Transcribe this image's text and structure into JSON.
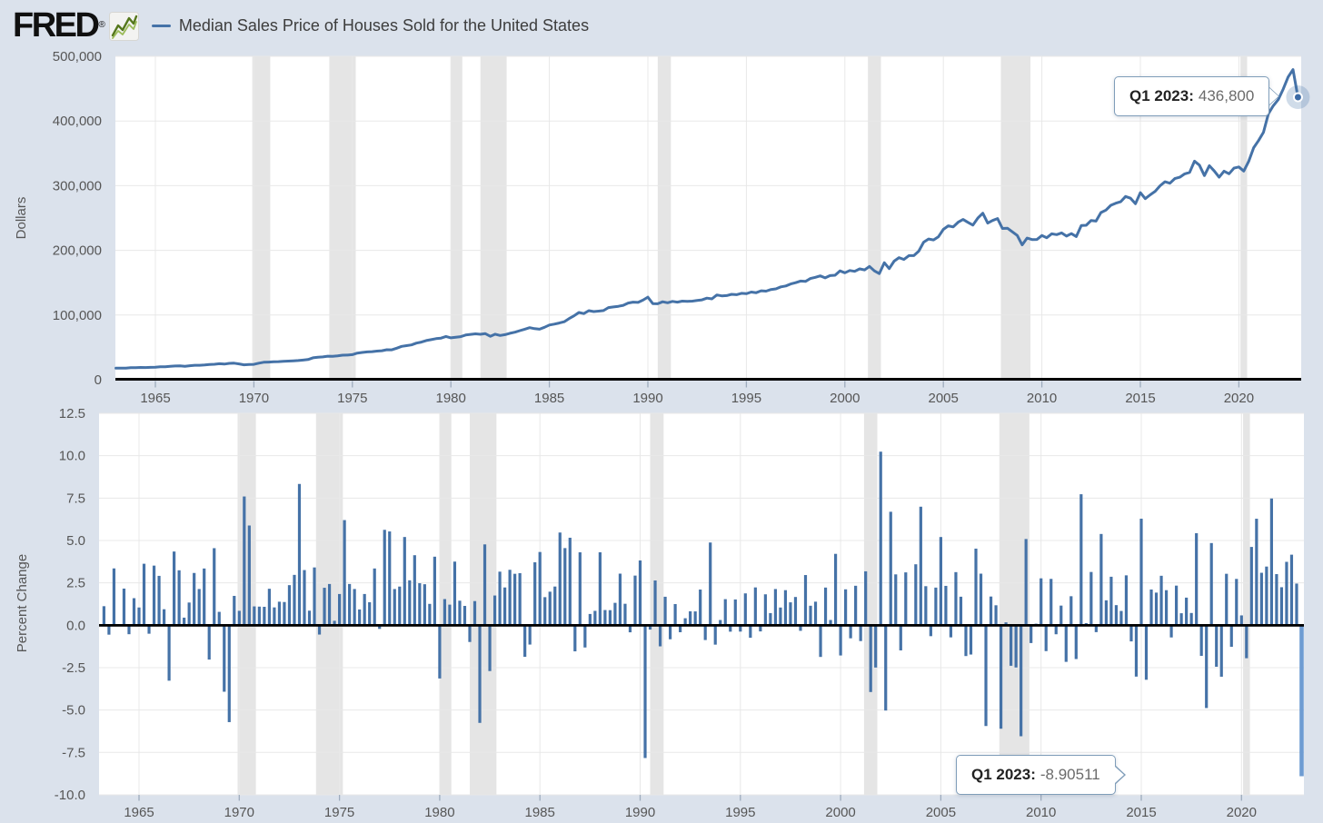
{
  "page": {
    "background": "#dbe2ec"
  },
  "header": {
    "logo_text": "FRED",
    "logo_registered": "®",
    "legend_label": "Median Sales Price of Houses Sold for the United States"
  },
  "tooltips": {
    "price": {
      "label": "Q1 2023:",
      "value": "436,800"
    },
    "pct": {
      "label": "Q1 2023:",
      "value": "-8.90511"
    }
  },
  "colors": {
    "series_blue": "#4572a7",
    "hover_bar_blue": "#6e9cd2",
    "marker_halo": "rgba(69,114,167,0.25)",
    "recession_band": "#e5e5e5",
    "gridline": "#e8e8e8",
    "plot_background": "#ffffff",
    "page_background": "#dbe2ec",
    "axis_line": "#000000",
    "tick_text": "#565656",
    "tick_mark": "#9dabbd",
    "logo_spark_dark_green": "#55771c",
    "logo_spark_light_green": "#9bbb59"
  },
  "chart_data": [
    {
      "type": "line",
      "title": "Median Sales Price of Houses Sold for the United States",
      "ylabel": "Dollars",
      "xlabel": "",
      "frequency": "quarterly",
      "x_start": 1963.0,
      "x_step": 0.25,
      "ylim": [
        0,
        500000
      ],
      "y_ticks": [
        0,
        100000,
        200000,
        300000,
        400000,
        500000
      ],
      "y_tick_labels": [
        "0",
        "100,000",
        "200,000",
        "300,000",
        "400,000",
        "500,000"
      ],
      "x_ticks": [
        1965,
        1970,
        1975,
        1980,
        1985,
        1990,
        1995,
        2000,
        2005,
        2010,
        2015,
        2020
      ],
      "x_tick_labels": [
        "1965",
        "1970",
        "1975",
        "1980",
        "1985",
        "1990",
        "1995",
        "2000",
        "2005",
        "2010",
        "2015",
        "2020"
      ],
      "grid": true,
      "legend_position": "top-left-header",
      "recession_bands": [
        [
          1969.92,
          1970.83
        ],
        [
          1973.83,
          1975.17
        ],
        [
          1980.0,
          1980.58
        ],
        [
          1981.5,
          1982.83
        ],
        [
          1990.5,
          1991.17
        ],
        [
          2001.17,
          2001.83
        ],
        [
          2007.92,
          2009.42
        ],
        [
          2020.08,
          2020.42
        ]
      ],
      "last_point": {
        "period": "Q1 2023",
        "value": 436800
      },
      "values": [
        17800,
        18000,
        17900,
        18500,
        18500,
        18900,
        18800,
        19100,
        19300,
        20000,
        19900,
        20600,
        21200,
        21400,
        20700,
        21600,
        22300,
        22400,
        22700,
        23400,
        23900,
        24700,
        24200,
        25300,
        25500,
        24500,
        23100,
        23500,
        23700,
        25500,
        27000,
        27300,
        27600,
        27900,
        28500,
        28800,
        29200,
        29600,
        30300,
        31200,
        33800,
        34900,
        35200,
        36400,
        36200,
        37000,
        37900,
        38000,
        38700,
        41100,
        42100,
        43000,
        43400,
        44200,
        44800,
        46300,
        46200,
        48800,
        51500,
        52600,
        53800,
        56600,
        58100,
        60500,
        62000,
        63500,
        64300,
        66900,
        64800,
        65800,
        66600,
        69100,
        70100,
        70900,
        70200,
        71200,
        67100,
        70300,
        68400,
        69600,
        71800,
        73400,
        75800,
        78100,
        80500,
        79000,
        78100,
        81000,
        84500,
        85900,
        87600,
        89600,
        94500,
        98800,
        103900,
        102300,
        106700,
        105300,
        106000,
        106900,
        111500,
        112500,
        113500,
        115000,
        118500,
        120000,
        119500,
        123000,
        127700,
        117700,
        117400,
        120500,
        119000,
        121000,
        120000,
        121500,
        121000,
        121500,
        122500,
        123500,
        126100,
        125000,
        131100,
        129600,
        130000,
        132000,
        131500,
        133500,
        133000,
        135500,
        134500,
        137500,
        137000,
        139500,
        140500,
        143500,
        145000,
        148000,
        150000,
        152500,
        152000,
        156500,
        158300,
        160500,
        157500,
        161000,
        161500,
        168300,
        165300,
        168800,
        167500,
        171400,
        169800,
        175200,
        168300,
        164100,
        180900,
        171800,
        183300,
        188800,
        186000,
        191800,
        191900,
        198800,
        212700,
        217600,
        216200,
        221000,
        232500,
        237900,
        236200,
        243600,
        247700,
        243200,
        239000,
        249800,
        257400,
        242100,
        246200,
        249100,
        233900,
        234300,
        228700,
        223000,
        208400,
        219000,
        216700,
        216900,
        222900,
        219500,
        225500,
        224300,
        226900,
        222000,
        225800,
        221300,
        238400,
        238700,
        246200,
        245200,
        258400,
        262200,
        269700,
        272900,
        275200,
        283300,
        280600,
        272100,
        289200,
        279900,
        285800,
        291300,
        299800,
        306000,
        303800,
        310900,
        313100,
        318200,
        320500,
        337900,
        331800,
        315600,
        330900,
        322800,
        313000,
        322500,
        318400,
        327100,
        329000,
        322600,
        337500,
        358700,
        369800,
        382600,
        411200,
        423600,
        433100,
        449300,
        468000,
        479500,
        436800
      ]
    },
    {
      "type": "bar",
      "title": "Quarterly percent change of Median Sales Price of Houses Sold for the United States",
      "ylabel": "Percent Change",
      "xlabel": "",
      "frequency": "quarterly",
      "x_start": 1963.25,
      "x_step": 0.25,
      "ylim": [
        -10.0,
        12.5
      ],
      "y_ticks": [
        -10.0,
        -7.5,
        -5.0,
        -2.5,
        0.0,
        2.5,
        5.0,
        7.5,
        10.0,
        12.5
      ],
      "y_tick_labels": [
        "-10.0",
        "-7.5",
        "-5.0",
        "-2.5",
        "0.0",
        "2.5",
        "5.0",
        "7.5",
        "10.0",
        "12.5"
      ],
      "x_ticks": [
        1965,
        1970,
        1975,
        1980,
        1985,
        1990,
        1995,
        2000,
        2005,
        2010,
        2015,
        2020
      ],
      "x_tick_labels": [
        "1965",
        "1970",
        "1975",
        "1980",
        "1985",
        "1990",
        "1995",
        "2000",
        "2005",
        "2010",
        "2015",
        "2020"
      ],
      "grid": true,
      "recession_bands": [
        [
          1969.92,
          1970.83
        ],
        [
          1973.83,
          1975.17
        ],
        [
          1980.0,
          1980.58
        ],
        [
          1981.5,
          1982.83
        ],
        [
          1990.5,
          1991.17
        ],
        [
          2001.17,
          2001.83
        ],
        [
          2007.92,
          2009.42
        ],
        [
          2020.08,
          2020.42
        ]
      ],
      "values_derivation": "percent change from previous quarter of chart_data[0].values: (v[i]/v[i-1]-1)*100",
      "last_point": {
        "period": "Q1 2023",
        "value": -8.90511,
        "highlighted": true
      }
    }
  ]
}
